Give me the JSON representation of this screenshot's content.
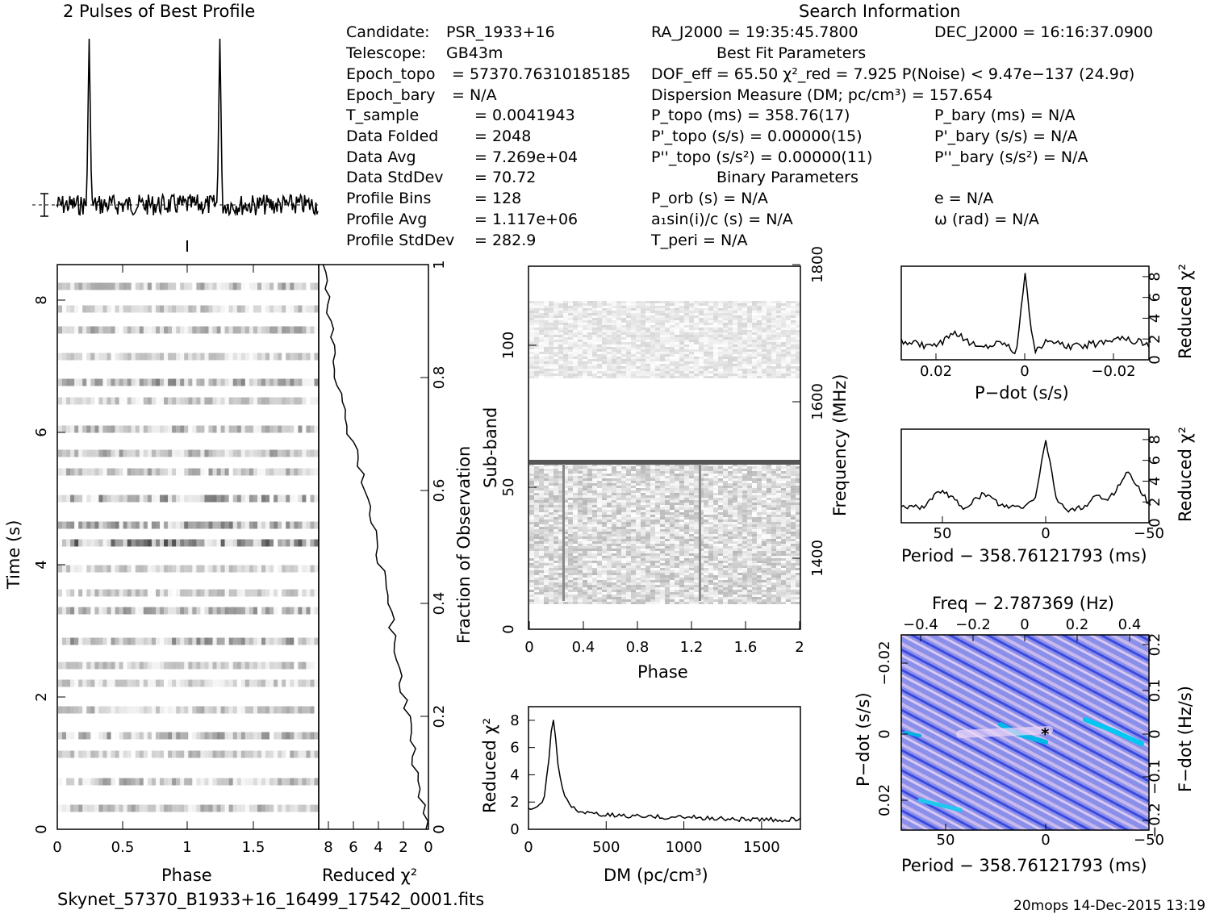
{
  "title_profile": "2 Pulses of Best Profile",
  "title_search": "Search Information",
  "filename": "Skynet_57370_B1933+16_16499_17542_0001.fits",
  "footer": "20mops 14-Dec-2015 13:19",
  "info_left": [
    {
      "k": "Candidate:",
      "v": "PSR_1933+16"
    },
    {
      "k": "Telescope:",
      "v": "GB43m"
    },
    {
      "k": "Epoch_topo",
      "v": "= 57370.76310185185"
    },
    {
      "k": "Epoch_bary",
      "v": "= N/A"
    },
    {
      "k": "T_sample",
      "v": "=   0.0041943"
    },
    {
      "k": "Data Folded",
      "v": "=   2048"
    },
    {
      "k": "Data Avg",
      "v": "=   7.269e+04"
    },
    {
      "k": "Data StdDev",
      "v": "=   70.72"
    },
    {
      "k": "Profile Bins",
      "v": "=   128"
    },
    {
      "k": "Profile Avg",
      "v": "=   1.117e+06"
    },
    {
      "k": "Profile StdDev",
      "v": "=   282.9"
    }
  ],
  "info_mid": {
    "ra": "RA_J2000 = 19:35:45.7800",
    "best_fit_header": "Best Fit Parameters",
    "dof": "DOF_eff = 65.50  χ²_red = 7.925  P(Noise) < 9.47e−137  (24.9σ)",
    "dm": "Dispersion Measure (DM; pc/cm³) = 157.654",
    "ptopo": "P_topo (ms) =  358.76(17)",
    "pdtopo": "P'_topo (s/s) =  0.00000(15)",
    "pddtopo": "P''_topo (s/s²) =  0.00000(11)",
    "binary_header": "Binary Parameters",
    "porb": "P_orb (s) = N/A",
    "a1sini": "a₁sin(i)/c (s) = N/A",
    "tperi": "T_peri = N/A"
  },
  "info_right": {
    "dec": "DEC_J2000 = 16:16:37.0900",
    "pbary": "P_bary (ms) = N/A",
    "pdbary": "P'_bary (s/s) = N/A",
    "pddbary": "P''_bary (s/s²) = N/A",
    "e": "e = N/A",
    "omega": "ω (rad) = N/A"
  },
  "chart_data": [
    {
      "type": "line",
      "name": "pulse_profile",
      "title": "2 Pulses of Best Profile",
      "x": [
        0,
        2
      ],
      "peaks_phase": [
        0.25,
        1.25
      ],
      "baseline": "dashed"
    },
    {
      "type": "heatmap",
      "name": "time_phase",
      "xlabel": "Phase",
      "ylabel": "Time (s)",
      "xticks": [
        "0",
        "0.5",
        "1",
        "1.5"
      ],
      "yticks": [
        "0",
        "2",
        "4",
        "6",
        "8"
      ],
      "xlim": [
        0,
        2
      ],
      "ylim": [
        0,
        8.6
      ]
    },
    {
      "type": "line",
      "name": "reduced_chi2_vs_time",
      "xlabel": "Reduced χ²",
      "xticks": [
        "8",
        "6",
        "4",
        "2",
        "0"
      ],
      "yticks_right": [
        "0",
        "0.2",
        "0.4",
        "0.6",
        "0.8",
        "1"
      ],
      "ylabel_right": "Fraction of Observation",
      "x": [
        0.2,
        1.0,
        1.5,
        2.5,
        3.0,
        4.0,
        4.8,
        6.0,
        7.0,
        7.6,
        7.9
      ],
      "y": [
        0.02,
        0.1,
        0.2,
        0.3,
        0.4,
        0.5,
        0.6,
        0.7,
        0.8,
        0.9,
        0.99
      ]
    },
    {
      "type": "heatmap",
      "name": "subband_phase",
      "xlabel": "Phase",
      "ylabel": "Sub-band",
      "ylabel_right": "Frequency (MHz)",
      "xticks": [
        "0",
        "0.4",
        "0.8",
        "1.2",
        "1.6",
        "2"
      ],
      "yticks": [
        "0",
        "50",
        "100"
      ],
      "yticks_right": [
        "1400",
        "1600",
        "1800"
      ]
    },
    {
      "type": "line",
      "name": "dm_curve",
      "xlabel": "DM (pc/cm³)",
      "ylabel": "Reduced χ²",
      "xticks": [
        "0",
        "500",
        "1000",
        "1500"
      ],
      "yticks": [
        "0",
        "2",
        "4",
        "6",
        "8"
      ],
      "x": [
        0,
        50,
        100,
        130,
        150,
        160,
        175,
        200,
        250,
        300,
        400,
        600,
        800,
        1000,
        1200,
        1500,
        1750
      ],
      "y": [
        1.4,
        1.5,
        2.3,
        5.0,
        7.5,
        8.0,
        6.5,
        3.8,
        2.0,
        1.4,
        1.1,
        1.0,
        0.9,
        0.9,
        0.8,
        0.7,
        0.7
      ]
    },
    {
      "type": "line",
      "name": "pdot_curve",
      "xlabel": "P−dot (s/s)",
      "ylabel": "Reduced χ²",
      "xticks": [
        "0.02",
        "0",
        "−0.02"
      ],
      "yticks": [
        "0",
        "2",
        "4",
        "6",
        "8"
      ],
      "x": [
        0.027,
        0.02,
        0.015,
        0.01,
        0.005,
        0.002,
        0,
        -0.002,
        -0.005,
        -0.01,
        -0.015,
        -0.02,
        -0.027
      ],
      "y": [
        1.8,
        1.2,
        2.5,
        1.2,
        1.8,
        0.8,
        8.0,
        0.8,
        1.8,
        1.2,
        1.5,
        2.2,
        1.5
      ]
    },
    {
      "type": "line",
      "name": "period_curve",
      "xlabel": "Period − 358.76121793 (ms)",
      "ylabel": "Reduced χ²",
      "xticks": [
        "50",
        "0",
        "−50"
      ],
      "yticks": [
        "0",
        "2",
        "4",
        "6",
        "8"
      ],
      "x": [
        70,
        60,
        50,
        40,
        30,
        20,
        10,
        5,
        0,
        -5,
        -10,
        -20,
        -25,
        -30,
        -35,
        -40,
        -50
      ],
      "y": [
        1.5,
        1.5,
        3.2,
        1.4,
        2.8,
        1.5,
        1.5,
        2.5,
        8.0,
        2.5,
        1.2,
        1.5,
        2.8,
        2.0,
        3.5,
        5.0,
        1.8
      ]
    },
    {
      "type": "heatmap",
      "name": "pdot_period_plane",
      "xlabel": "Period − 358.76121793 (ms)",
      "ylabel": "P−dot (s/s)",
      "title": "Freq − 2.787369 (Hz)",
      "ylabel_right": "F−dot (Hz/s)",
      "xticks": [
        "50",
        "0",
        "−50"
      ],
      "xticks_top": [
        "−0.4",
        "−0.2",
        "0",
        "0.2",
        "0.4"
      ],
      "yticks": [
        "−0.02",
        "0",
        "0.02"
      ],
      "yticks_right": [
        "0.2",
        "0.1",
        "0",
        "−0.1",
        "−0.2"
      ]
    }
  ]
}
